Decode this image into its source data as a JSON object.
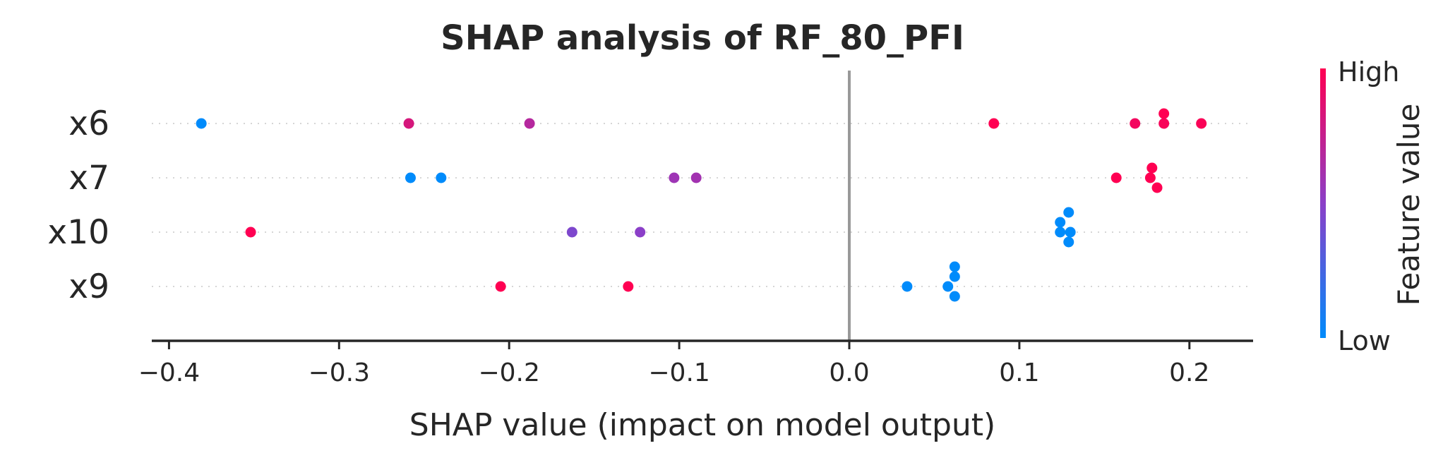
{
  "chart_data": {
    "type": "scatter",
    "title": "SHAP analysis of RF_80_PFI",
    "xlabel": "SHAP value (impact on model output)",
    "xlim": [
      -0.41,
      0.235
    ],
    "xticks": [
      -0.4,
      -0.3,
      -0.2,
      -0.1,
      0.0,
      0.1,
      0.2
    ],
    "xtick_labels": [
      "−0.4",
      "−0.3",
      "−0.2",
      "−0.1",
      "0.0",
      "0.1",
      "0.2"
    ],
    "features": [
      "x6",
      "x7",
      "x10",
      "x9"
    ],
    "colorbar": {
      "label": "Feature value",
      "high_label": "High",
      "low_label": "Low",
      "high_color": "#ff0052",
      "mid_color": "#8b3fc8",
      "low_color": "#008bfb"
    },
    "grid": "dotted feature rows",
    "points": [
      {
        "feature": "x6",
        "shap": -0.381,
        "value": 0.0
      },
      {
        "feature": "x6",
        "shap": -0.259,
        "value": 0.82
      },
      {
        "feature": "x6",
        "shap": -0.188,
        "value": 0.68
      },
      {
        "feature": "x6",
        "shap": 0.085,
        "value": 1.0
      },
      {
        "feature": "x6",
        "shap": 0.168,
        "value": 0.95
      },
      {
        "feature": "x6",
        "shap": 0.185,
        "value": 0.97
      },
      {
        "feature": "x6",
        "shap": 0.185,
        "value": 1.0
      },
      {
        "feature": "x6",
        "shap": 0.207,
        "value": 0.98
      },
      {
        "feature": "x7",
        "shap": -0.258,
        "value": 0.0
      },
      {
        "feature": "x7",
        "shap": -0.24,
        "value": 0.0
      },
      {
        "feature": "x7",
        "shap": -0.103,
        "value": 0.58
      },
      {
        "feature": "x7",
        "shap": -0.09,
        "value": 0.6
      },
      {
        "feature": "x7",
        "shap": 0.157,
        "value": 1.0
      },
      {
        "feature": "x7",
        "shap": 0.177,
        "value": 1.0
      },
      {
        "feature": "x7",
        "shap": 0.178,
        "value": 1.0
      },
      {
        "feature": "x7",
        "shap": 0.181,
        "value": 1.0
      },
      {
        "feature": "x10",
        "shap": -0.352,
        "value": 1.0
      },
      {
        "feature": "x10",
        "shap": -0.163,
        "value": 0.45
      },
      {
        "feature": "x10",
        "shap": -0.123,
        "value": 0.5
      },
      {
        "feature": "x10",
        "shap": 0.124,
        "value": 0.0
      },
      {
        "feature": "x10",
        "shap": 0.13,
        "value": 0.0
      },
      {
        "feature": "x10",
        "shap": 0.124,
        "value": 0.0
      },
      {
        "feature": "x10",
        "shap": 0.129,
        "value": 0.0
      },
      {
        "feature": "x10",
        "shap": 0.129,
        "value": 0.0
      },
      {
        "feature": "x9",
        "shap": -0.205,
        "value": 1.0
      },
      {
        "feature": "x9",
        "shap": -0.13,
        "value": 1.0
      },
      {
        "feature": "x9",
        "shap": 0.034,
        "value": 0.0
      },
      {
        "feature": "x9",
        "shap": 0.058,
        "value": 0.0
      },
      {
        "feature": "x9",
        "shap": 0.062,
        "value": 0.0
      },
      {
        "feature": "x9",
        "shap": 0.062,
        "value": 0.0
      },
      {
        "feature": "x9",
        "shap": 0.062,
        "value": 0.0
      }
    ]
  }
}
